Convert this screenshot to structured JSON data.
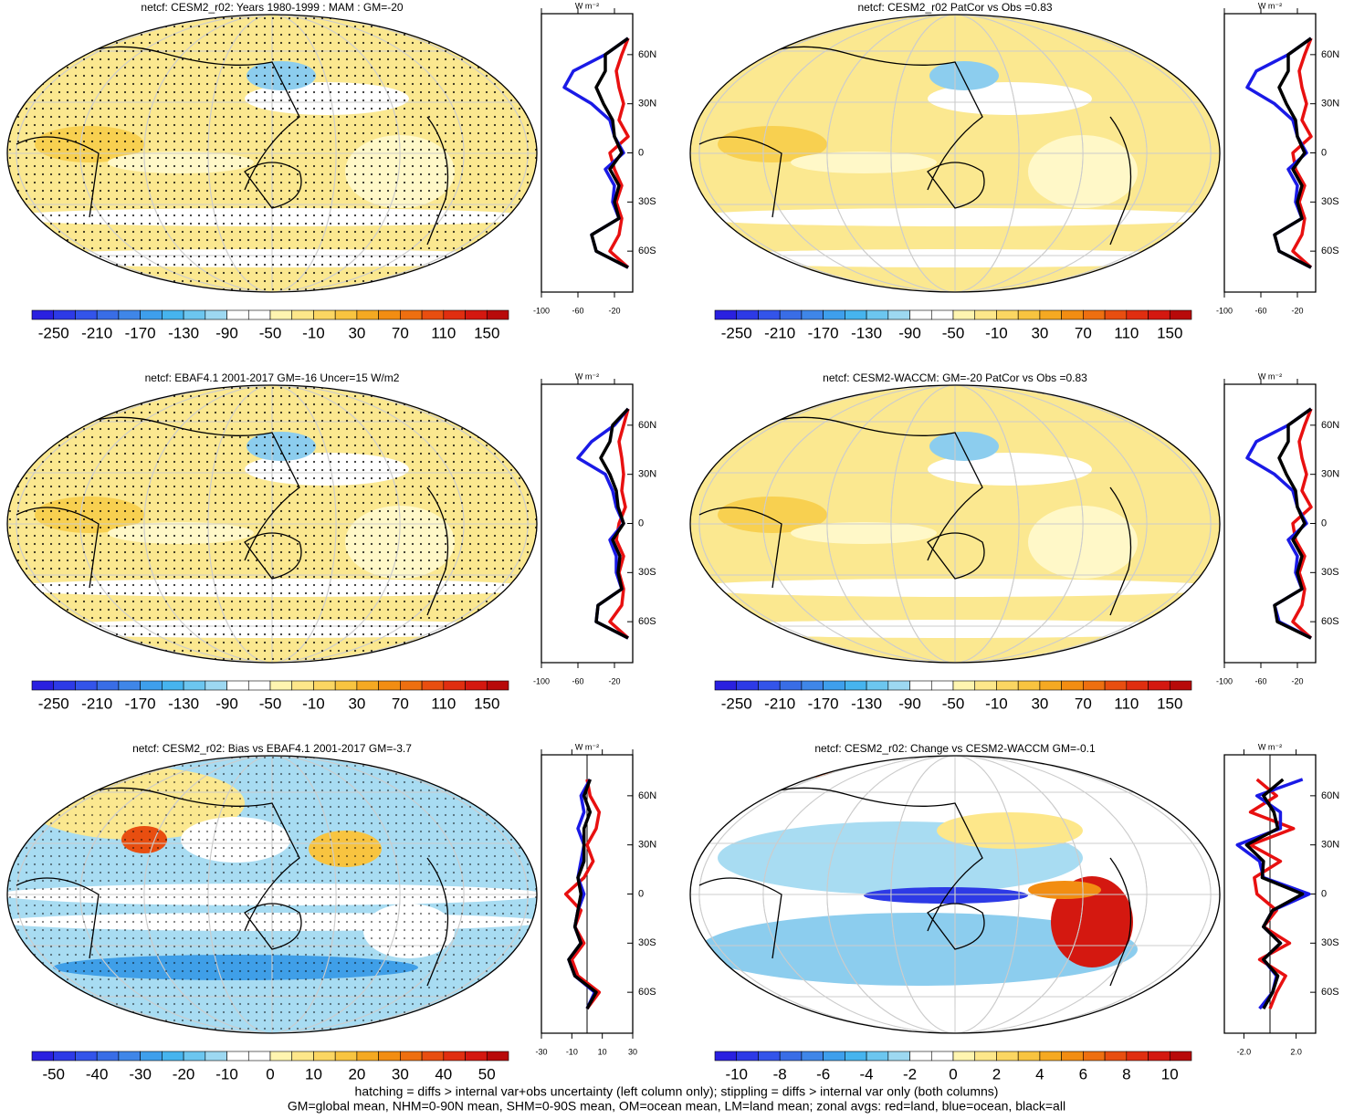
{
  "colorbar_colors": [
    "#2a20e0",
    "#2d3ae6",
    "#3354ea",
    "#396de6",
    "#3f86e8",
    "#3e9fec",
    "#46b4ee",
    "#6cc6ef",
    "#9dd8f1",
    "#ffffff",
    "#ffffff",
    "#fff5b0",
    "#fde78a",
    "#fbd662",
    "#f8c440",
    "#f5a922",
    "#f28d12",
    "#ee6f10",
    "#e84e10",
    "#e02e10",
    "#d41810",
    "#b80a0a"
  ],
  "footnote": [
    "hatching = diffs > internal var+obs uncertainty (left column only); stippling = diffs > internal var only (both columns)",
    "GM=global mean, NHM=0-90N mean, SHM=0-90S mean, OM=ocean mean, LM=land mean; zonal avgs: red=land, blue=ocean, black=all"
  ],
  "chart_data": [
    {
      "type": "zonal",
      "title": "netcf: CESM2_r02: Years 1980-1999 : MAM : GM=-20",
      "units": "W m⁻²",
      "colorbar_ticks": [
        -250,
        -210,
        -170,
        -130,
        -90,
        -50,
        -10,
        30,
        70,
        110,
        150
      ],
      "y": [
        -70,
        -60,
        -50,
        -40,
        -30,
        -20,
        -10,
        0,
        10,
        20,
        30,
        40,
        50,
        60,
        70
      ],
      "series": [
        {
          "name": "land",
          "color": "#e81010",
          "values": [
            -5,
            -25,
            -15,
            -12,
            -18,
            -12,
            -20,
            -25,
            -5,
            -15,
            -10,
            -15,
            -18,
            -12,
            -5
          ]
        },
        {
          "name": "ocean",
          "color": "#1a1ae6",
          "values": [
            -5,
            -40,
            -45,
            -15,
            -22,
            -20,
            -30,
            -10,
            -20,
            -25,
            -45,
            -75,
            -65,
            -30,
            -5
          ]
        },
        {
          "name": "all",
          "color": "#000000",
          "values": [
            -5,
            -40,
            -45,
            -15,
            -20,
            -15,
            -25,
            -12,
            -20,
            -22,
            -32,
            -40,
            -30,
            -30,
            -5
          ]
        }
      ],
      "xlim": [
        -100,
        0
      ],
      "xticks": [
        -100,
        -60,
        -20
      ],
      "ylim": [
        -85,
        85
      ],
      "yticks": [
        {
          "value": 60,
          "label": "60N"
        },
        {
          "value": 30,
          "label": "30N"
        },
        0,
        {
          "value": -30,
          "label": "30S"
        },
        {
          "value": -60,
          "label": "60S"
        }
      ]
    },
    {
      "type": "zonal",
      "title": "netcf: CESM2_r02 PatCor vs Obs =0.83",
      "units": "W m⁻²",
      "colorbar_ticks": [
        -250,
        -210,
        -170,
        -130,
        -90,
        -50,
        -10,
        30,
        70,
        110,
        150
      ],
      "y": [
        -70,
        -60,
        -50,
        -40,
        -30,
        -20,
        -10,
        0,
        10,
        20,
        30,
        40,
        50,
        60,
        70
      ],
      "series": [
        {
          "name": "land",
          "color": "#e81010",
          "values": [
            -5,
            -25,
            -15,
            -12,
            -18,
            -12,
            -22,
            -25,
            -5,
            -15,
            -10,
            -15,
            -18,
            -12,
            -5
          ]
        },
        {
          "name": "ocean",
          "color": "#1a1ae6",
          "values": [
            -5,
            -40,
            -45,
            -15,
            -22,
            -20,
            -30,
            -10,
            -20,
            -25,
            -45,
            -75,
            -65,
            -30,
            -5
          ]
        },
        {
          "name": "all",
          "color": "#000000",
          "values": [
            -5,
            -40,
            -45,
            -15,
            -20,
            -15,
            -25,
            -12,
            -20,
            -22,
            -32,
            -40,
            -30,
            -30,
            -5
          ]
        }
      ],
      "xlim": [
        -100,
        0
      ],
      "xticks": [
        -100,
        -60,
        -20
      ],
      "ylim": [
        -85,
        85
      ],
      "yticks": [
        {
          "value": 60,
          "label": "60N"
        },
        {
          "value": 30,
          "label": "30N"
        },
        0,
        {
          "value": -30,
          "label": "30S"
        },
        {
          "value": -60,
          "label": "60S"
        }
      ]
    },
    {
      "type": "zonal",
      "title": "netcf: EBAF4.1 2001-2017 GM=-16 Uncer=15 W/m2",
      "units": "W m⁻²",
      "colorbar_ticks": [
        -250,
        -210,
        -170,
        -130,
        -90,
        -50,
        -10,
        30,
        70,
        110,
        150
      ],
      "y": [
        -70,
        -60,
        -50,
        -40,
        -30,
        -20,
        -10,
        0,
        10,
        20,
        30,
        40,
        50,
        60,
        70
      ],
      "series": [
        {
          "name": "land",
          "color": "#e81010",
          "values": [
            -5,
            -25,
            -12,
            -10,
            -15,
            -10,
            -18,
            -15,
            -8,
            -12,
            -10,
            -12,
            -15,
            -10,
            -5
          ]
        },
        {
          "name": "ocean",
          "color": "#1a1ae6",
          "values": [
            -5,
            -40,
            -38,
            -12,
            -18,
            -18,
            -25,
            -10,
            -18,
            -22,
            -30,
            -60,
            -45,
            -20,
            -5
          ]
        },
        {
          "name": "all",
          "color": "#000000",
          "values": [
            -5,
            -40,
            -38,
            -12,
            -16,
            -14,
            -22,
            -10,
            -16,
            -18,
            -25,
            -35,
            -25,
            -22,
            -5
          ]
        }
      ],
      "xlim": [
        -100,
        0
      ],
      "xticks": [
        -100,
        -60,
        -20
      ],
      "ylim": [
        -85,
        85
      ],
      "yticks": [
        {
          "value": 60,
          "label": "60N"
        },
        {
          "value": 30,
          "label": "30N"
        },
        0,
        {
          "value": -30,
          "label": "30S"
        },
        {
          "value": -60,
          "label": "60S"
        }
      ]
    },
    {
      "type": "zonal",
      "title": "netcf: CESM2-WACCM: GM=-20 PatCor vs Obs =0.83",
      "units": "W m⁻²",
      "colorbar_ticks": [
        -250,
        -210,
        -170,
        -130,
        -90,
        -50,
        -10,
        30,
        70,
        110,
        150
      ],
      "y": [
        -70,
        -60,
        -50,
        -40,
        -30,
        -20,
        -10,
        0,
        10,
        20,
        30,
        40,
        50,
        60,
        70
      ],
      "series": [
        {
          "name": "land",
          "color": "#e81010",
          "values": [
            -5,
            -25,
            -15,
            -12,
            -18,
            -12,
            -22,
            -25,
            -5,
            -15,
            -10,
            -15,
            -18,
            -12,
            -5
          ]
        },
        {
          "name": "ocean",
          "color": "#1a1ae6",
          "values": [
            -5,
            -40,
            -45,
            -15,
            -22,
            -20,
            -30,
            -10,
            -20,
            -25,
            -45,
            -75,
            -65,
            -30,
            -5
          ]
        },
        {
          "name": "all",
          "color": "#000000",
          "values": [
            -5,
            -42,
            -45,
            -15,
            -20,
            -15,
            -25,
            -12,
            -20,
            -22,
            -32,
            -40,
            -30,
            -30,
            -5
          ]
        }
      ],
      "xlim": [
        -100,
        0
      ],
      "xticks": [
        -100,
        -60,
        -20
      ],
      "ylim": [
        -85,
        85
      ],
      "yticks": [
        {
          "value": 60,
          "label": "60N"
        },
        {
          "value": 30,
          "label": "30N"
        },
        0,
        {
          "value": -30,
          "label": "30S"
        },
        {
          "value": -60,
          "label": "60S"
        }
      ]
    },
    {
      "type": "zonal",
      "title": "netcf: CESM2_r02: Bias vs EBAF4.1 2001-2017 GM=-3.7",
      "units": "W m⁻²",
      "colorbar_ticks": [
        -50,
        -40,
        -30,
        -20,
        -10,
        0,
        10,
        20,
        30,
        40,
        50
      ],
      "y": [
        -70,
        -60,
        -50,
        -40,
        -30,
        -20,
        -10,
        0,
        10,
        20,
        30,
        40,
        50,
        60,
        70
      ],
      "series": [
        {
          "name": "land",
          "color": "#e81010",
          "values": [
            0,
            8,
            -6,
            -10,
            -2,
            -8,
            -4,
            -14,
            -2,
            4,
            0,
            6,
            8,
            2,
            0
          ]
        },
        {
          "name": "ocean",
          "color": "#1a1ae6",
          "values": [
            0,
            5,
            -8,
            -12,
            -4,
            -8,
            -6,
            -2,
            -6,
            -4,
            -2,
            -6,
            -2,
            -4,
            2
          ]
        },
        {
          "name": "all",
          "color": "#000000",
          "values": [
            0,
            6,
            -8,
            -12,
            -4,
            -8,
            -6,
            -4,
            -6,
            -2,
            -2,
            -2,
            2,
            -2,
            2
          ]
        }
      ],
      "xlim": [
        -30,
        30
      ],
      "xticks": [
        -30,
        -10,
        10,
        30
      ],
      "ylim": [
        -85,
        85
      ],
      "yticks": [
        {
          "value": 60,
          "label": "60N"
        },
        {
          "value": 30,
          "label": "30N"
        },
        0,
        {
          "value": -30,
          "label": "30S"
        },
        {
          "value": -60,
          "label": "60S"
        }
      ]
    },
    {
      "type": "zonal",
      "title": "netcf: CESM2_r02: Change vs CESM2-WACCM GM=-0.1",
      "units": "W m⁻²",
      "colorbar_ticks": [
        -10,
        -8,
        -6,
        -4,
        -2,
        0,
        2,
        4,
        6,
        8,
        10
      ],
      "y": [
        -70,
        -60,
        -50,
        -40,
        -30,
        -20,
        -10,
        0,
        10,
        20,
        30,
        40,
        50,
        60,
        70
      ],
      "series": [
        {
          "name": "land",
          "color": "#e81010",
          "values": [
            0,
            0.5,
            1.2,
            -0.8,
            1.5,
            -0.5,
            0.5,
            -1,
            -1.2,
            0.8,
            -1.5,
            1.8,
            -1.5,
            0.5,
            -1
          ]
        },
        {
          "name": "ocean",
          "color": "#1a1ae6",
          "values": [
            -0.8,
            0.2,
            0.5,
            -0.5,
            0.8,
            -0.5,
            0.2,
            3,
            -0.5,
            -0.8,
            -2.5,
            0.8,
            0.8,
            -1,
            2.5
          ]
        },
        {
          "name": "all",
          "color": "#000000",
          "values": [
            -0.5,
            0.2,
            0.6,
            -0.5,
            0.8,
            -0.5,
            0.2,
            2.5,
            -0.6,
            -0.5,
            -1.8,
            0.6,
            0.3,
            -0.5,
            1
          ]
        }
      ],
      "xlim": [
        -3.5,
        3.5
      ],
      "xticks": [
        {
          "value": -2,
          "label": "-2.0"
        },
        {
          "value": 2,
          "label": "2.0"
        }
      ],
      "ylim": [
        -85,
        85
      ],
      "yticks": [
        {
          "value": 60,
          "label": "60N"
        },
        {
          "value": 30,
          "label": "30N"
        },
        0,
        {
          "value": -30,
          "label": "30S"
        },
        {
          "value": -60,
          "label": "60S"
        }
      ]
    }
  ]
}
